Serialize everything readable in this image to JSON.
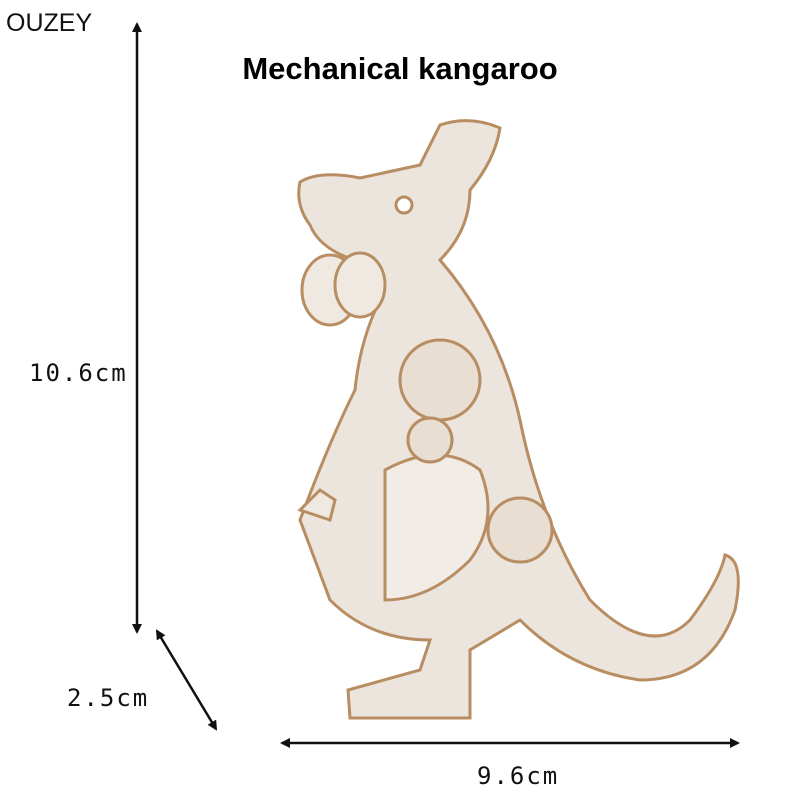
{
  "brand": "OUZEY",
  "title": "Mechanical kangaroo",
  "dimensions": {
    "height": "10.6cm",
    "depth": "2.5cm",
    "width": "9.6cm"
  }
}
